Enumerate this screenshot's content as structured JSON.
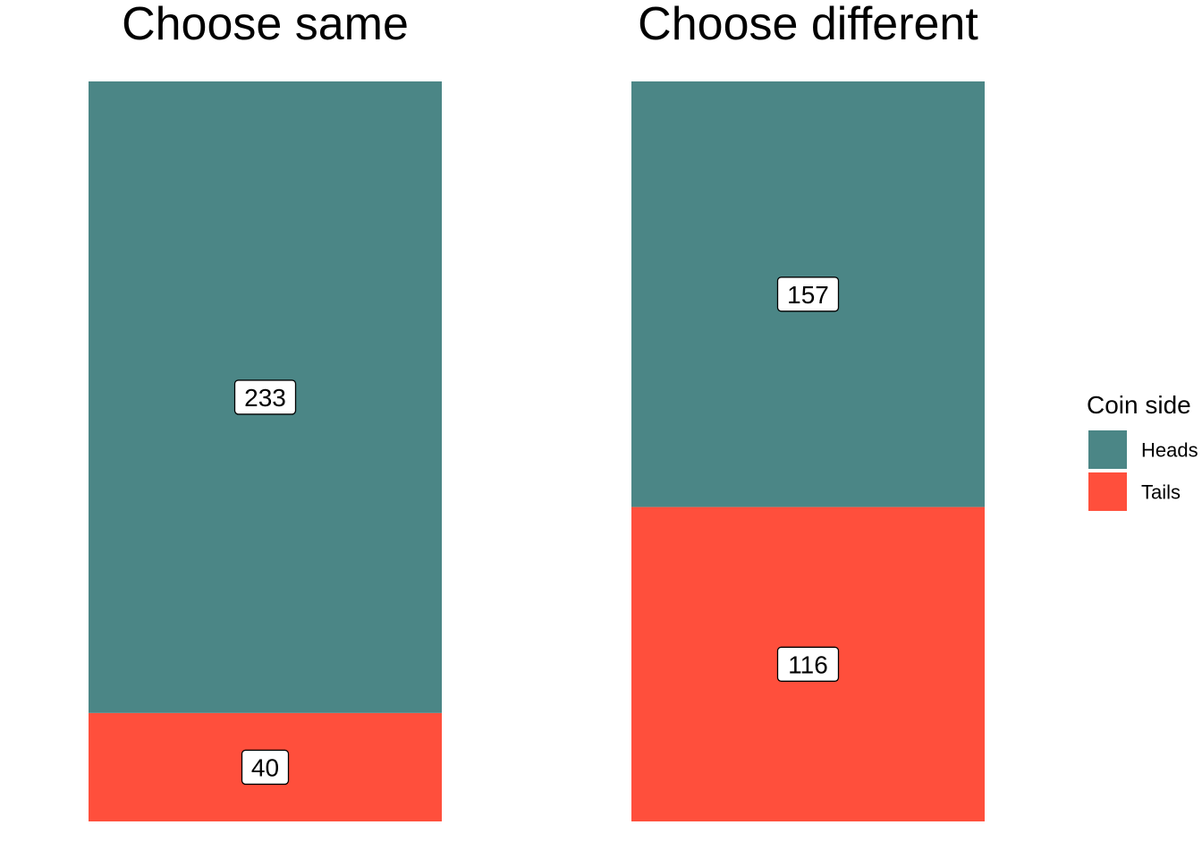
{
  "chart_data": {
    "type": "bar",
    "stacked": true,
    "normalized": true,
    "categories": [
      "Choose same",
      "Choose different"
    ],
    "series": [
      {
        "name": "Heads",
        "values": [
          233,
          157
        ],
        "color": "#4B8686"
      },
      {
        "name": "Tails",
        "values": [
          40,
          116
        ],
        "color": "#FF4F3C"
      }
    ],
    "legend": {
      "title": "Coin side",
      "placement": "right"
    },
    "grid": false,
    "axes_visible": false
  }
}
